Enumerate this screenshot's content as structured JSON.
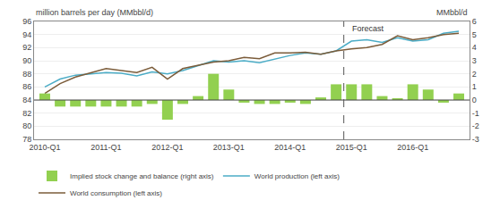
{
  "chart_data": {
    "type": "bar",
    "y_label": "million barrels per day (MMbbl/d)",
    "y2_label": "MMbbl/d",
    "categories": [
      "2010-Q1",
      null,
      null,
      null,
      "2011-Q1",
      null,
      null,
      null,
      "2012-Q1",
      null,
      null,
      null,
      "2013-Q1",
      null,
      null,
      null,
      "2014-Q1",
      null,
      null,
      null,
      "2015-Q1",
      null,
      null,
      null,
      "2016-Q1",
      null,
      null,
      null
    ],
    "series": [
      {
        "name": "Implied stock change and balance (right axis)",
        "type": "bar",
        "axis": "y2",
        "color": "#92d050",
        "values": [
          0.5,
          -0.5,
          -0.5,
          -0.5,
          -0.5,
          -0.5,
          -0.5,
          -0.3,
          -1.5,
          -0.3,
          0.3,
          2.0,
          0.8,
          -0.2,
          -0.3,
          -0.3,
          -0.2,
          -0.3,
          0.2,
          1.2,
          1.2,
          1.2,
          0.3,
          0.1,
          1.2,
          0.8,
          -0.2,
          0.5
        ]
      },
      {
        "name": "World production (left axis)",
        "type": "line",
        "color": "#4bacc6",
        "values": [
          86.0,
          87.2,
          87.8,
          88.0,
          88.2,
          88.1,
          87.7,
          88.3,
          88.0,
          88.5,
          89.3,
          90.0,
          89.8,
          90.0,
          89.7,
          90.3,
          90.8,
          91.2,
          91.0,
          91.5,
          93.0,
          93.2,
          92.8,
          93.5,
          93.0,
          93.2,
          94.2,
          94.5
        ]
      },
      {
        "name": "World consumption (left axis)",
        "type": "line",
        "color": "#7b5c3a",
        "values": [
          85.0,
          86.5,
          87.5,
          88.2,
          88.8,
          88.5,
          88.2,
          89.0,
          87.2,
          88.8,
          89.3,
          89.8,
          90.0,
          90.5,
          90.3,
          91.2,
          91.2,
          91.3,
          91.0,
          91.5,
          91.8,
          92.0,
          92.5,
          93.8,
          93.2,
          93.5,
          94.0,
          94.2
        ]
      }
    ],
    "ylim": [
      78,
      96
    ],
    "yticks": [
      78,
      80,
      82,
      84,
      86,
      88,
      90,
      92,
      94,
      96
    ],
    "y2lim": [
      -3,
      6
    ],
    "y2ticks": [
      -3,
      -2,
      -1,
      0,
      1,
      2,
      3,
      4,
      5,
      6
    ],
    "grid": true,
    "legend": "bottom",
    "annotations": [
      {
        "text": "Forecast",
        "x": "2015-Q1"
      }
    ],
    "hline": 84
  }
}
